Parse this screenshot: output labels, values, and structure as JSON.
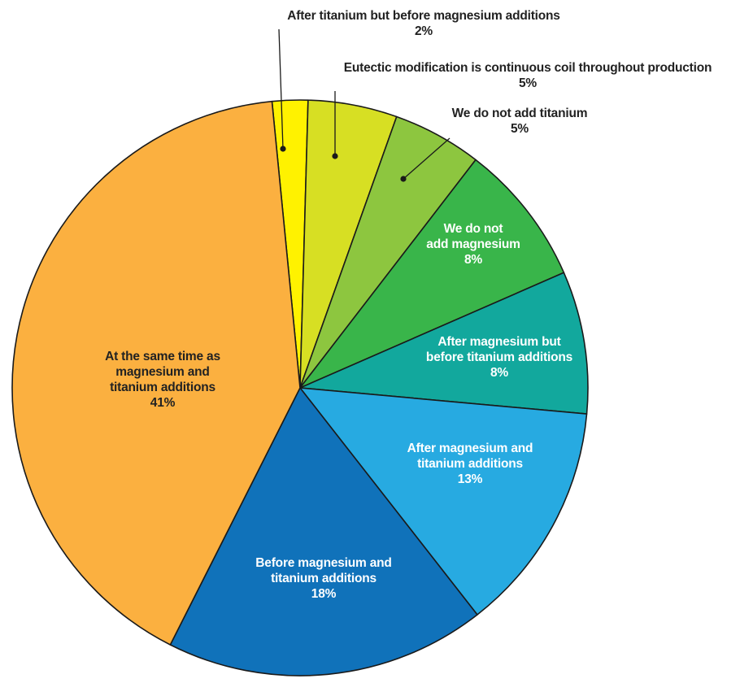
{
  "chart_data": {
    "type": "pie",
    "start_angle_deg": -5.6,
    "direction": "clockwise",
    "slices": [
      {
        "name": "After titanium but before magnesium additions",
        "value": 2,
        "value_label": "2%",
        "lines": [
          "After titanium but before magnesium additions"
        ],
        "color": "#FFF200",
        "label_position": "outside"
      },
      {
        "name": "Eutectic modification is continuous coil throughout production",
        "value": 5,
        "value_label": "5%",
        "lines": [
          "Eutectic modification is continuous coil throughout production"
        ],
        "color": "#D7DF23",
        "label_position": "outside"
      },
      {
        "name": "We do not add titanium",
        "value": 5,
        "value_label": "5%",
        "lines": [
          "We do not add titanium"
        ],
        "color": "#8DC63F",
        "label_position": "outside"
      },
      {
        "name": "We do not add magnesium",
        "value": 8,
        "value_label": "8%",
        "lines": [
          "We do not",
          "add magnesium"
        ],
        "color": "#39B54A",
        "label_position": "inside"
      },
      {
        "name": "After magnesium but before titanium additions",
        "value": 8,
        "value_label": "8%",
        "lines": [
          "After magnesium but",
          "before titanium additions"
        ],
        "color": "#12A89D",
        "label_position": "inside"
      },
      {
        "name": "After magnesium and titanium additions",
        "value": 13,
        "value_label": "13%",
        "lines": [
          "After magnesium and",
          "titanium additions"
        ],
        "color": "#27AAE1",
        "label_position": "inside"
      },
      {
        "name": "Before magnesium and titanium additions",
        "value": 18,
        "value_label": "18%",
        "lines": [
          "Before magnesium and",
          "titanium additions"
        ],
        "color": "#1072BA",
        "label_position": "inside"
      },
      {
        "name": "At the same time as magnesium and titanium additions",
        "value": 41,
        "value_label": "41%",
        "lines": [
          "At the same time as",
          "magnesium and",
          "titanium additions"
        ],
        "color": "#FBB040",
        "label_position": "inside"
      }
    ]
  }
}
